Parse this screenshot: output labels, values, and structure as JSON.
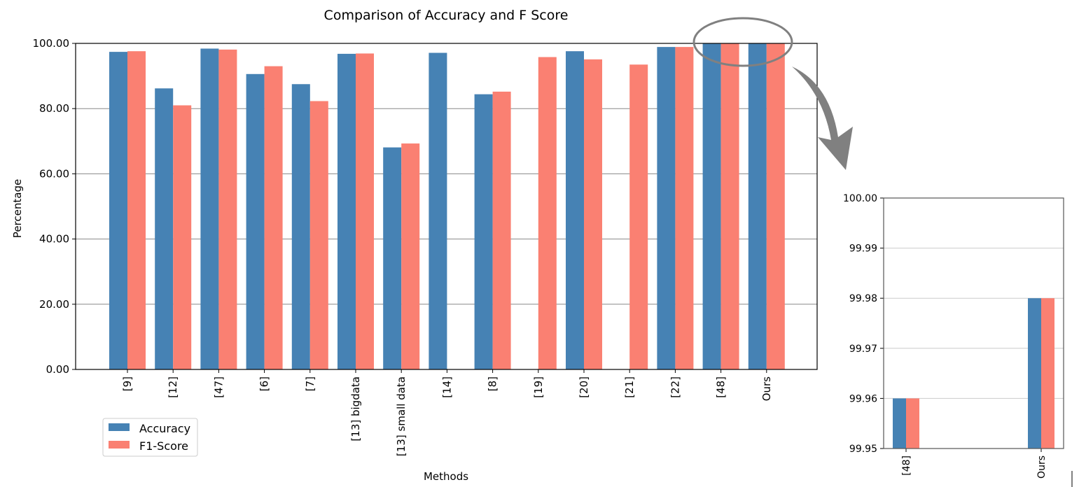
{
  "chart_data": [
    {
      "type": "bar",
      "title": "Comparison of Accuracy and F Score",
      "xlabel": "Methods",
      "ylabel": "Percentage",
      "ylim": [
        0,
        100
      ],
      "yticks": [
        "0.00",
        "20.00",
        "40.00",
        "60.00",
        "80.00",
        "100.00"
      ],
      "grid": "horizontal",
      "legend_position": "bottom-left",
      "categories": [
        "[9]",
        "[12]",
        "[47]",
        "[6]",
        "[7]",
        "[13] bigdata",
        "[13] small data",
        "[14]",
        "[8]",
        "[19]",
        "[20]",
        "[21]",
        "[22]",
        "[48]",
        "Ours"
      ],
      "series": [
        {
          "name": "Accuracy",
          "color": "#4682b4",
          "values": [
            97.4,
            86.2,
            98.4,
            90.6,
            87.5,
            96.8,
            68.1,
            97.1,
            84.4,
            null,
            97.6,
            null,
            98.9,
            99.96,
            99.98
          ]
        },
        {
          "name": "F1-Score",
          "color": "#fa8072",
          "values": [
            97.6,
            81.0,
            98.1,
            93.0,
            82.3,
            96.9,
            69.3,
            null,
            85.2,
            95.8,
            95.1,
            93.5,
            98.9,
            99.96,
            99.98
          ]
        }
      ]
    },
    {
      "type": "bar",
      "ylim": [
        99.95,
        100.0
      ],
      "yticks": [
        "99.95",
        "99.96",
        "99.97",
        "99.98",
        "99.99",
        "100.00"
      ],
      "grid": "horizontal",
      "categories": [
        "[48]",
        "Ours"
      ],
      "series": [
        {
          "color": "#4682b4",
          "values": [
            99.96,
            99.98
          ]
        },
        {
          "color": "#fa8072",
          "values": [
            99.96,
            99.98
          ]
        }
      ]
    }
  ]
}
